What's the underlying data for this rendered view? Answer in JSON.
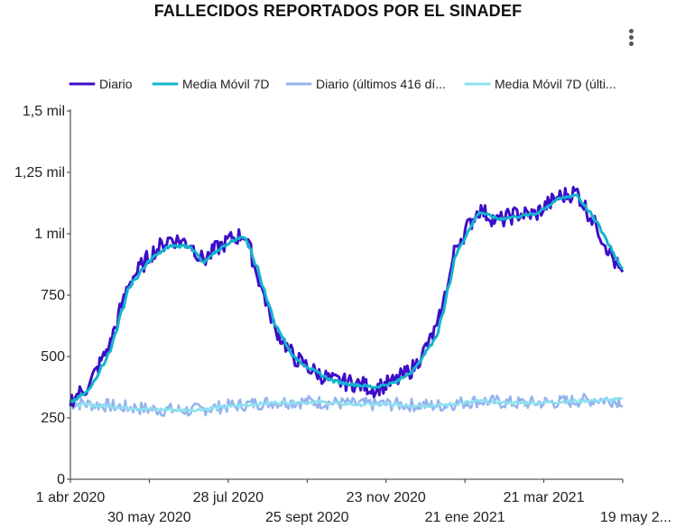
{
  "title": "FALLECIDOS REPORTADOS POR EL SINADEF",
  "chart_data": {
    "type": "line",
    "title": "FALLECIDOS REPORTADOS POR EL SINADEF",
    "xlabel": "",
    "ylabel": "",
    "ylim": [
      0,
      1500
    ],
    "y_ticks": [
      {
        "value": 0,
        "label": "0"
      },
      {
        "value": 250,
        "label": "250"
      },
      {
        "value": 500,
        "label": "500"
      },
      {
        "value": 750,
        "label": "750"
      },
      {
        "value": 1000,
        "label": "1 mil"
      },
      {
        "value": 1250,
        "label": "1,25 mil"
      },
      {
        "value": 1500,
        "label": "1,5 mil"
      }
    ],
    "x_range": [
      "2020-04-01",
      "2021-05-19"
    ],
    "x_ticks": [
      {
        "date": "2020-04-01",
        "label": "1 abr 2020",
        "row": 1
      },
      {
        "date": "2020-05-30",
        "label": "30 may 2020",
        "row": 2
      },
      {
        "date": "2020-07-28",
        "label": "28 jul 2020",
        "row": 1
      },
      {
        "date": "2020-09-25",
        "label": "25 sept 2020",
        "row": 2
      },
      {
        "date": "2020-11-23",
        "label": "23 nov 2020",
        "row": 1
      },
      {
        "date": "2021-01-21",
        "label": "21 ene 2021",
        "row": 2
      },
      {
        "date": "2021-03-21",
        "label": "21 mar 2021",
        "row": 1
      },
      {
        "date": "2021-05-19",
        "label": "19 may 2...",
        "row": 2
      }
    ],
    "grid": false,
    "legend_position": "top",
    "series": [
      {
        "name": "Diario",
        "color": "#3d0dc8",
        "x": [
          "2020-04-01",
          "2020-04-15",
          "2020-05-01",
          "2020-05-15",
          "2020-06-01",
          "2020-06-15",
          "2020-06-30",
          "2020-07-10",
          "2020-07-20",
          "2020-07-31",
          "2020-08-10",
          "2020-08-20",
          "2020-09-01",
          "2020-09-15",
          "2020-10-01",
          "2020-10-15",
          "2020-11-01",
          "2020-11-15",
          "2020-12-01",
          "2020-12-15",
          "2021-01-01",
          "2021-01-15",
          "2021-02-01",
          "2021-02-15",
          "2021-03-01",
          "2021-03-15",
          "2021-04-01",
          "2021-04-15",
          "2021-05-01",
          "2021-05-19"
        ],
        "values": [
          320,
          380,
          550,
          800,
          920,
          980,
          960,
          890,
          940,
          980,
          1000,
          820,
          620,
          500,
          440,
          400,
          390,
          370,
          400,
          460,
          620,
          950,
          1100,
          1050,
          1080,
          1080,
          1150,
          1170,
          1020,
          830
        ]
      },
      {
        "name": "Media Móvil 7D",
        "color": "#12b4cc",
        "x": [
          "2020-04-01",
          "2020-04-15",
          "2020-05-01",
          "2020-05-15",
          "2020-06-01",
          "2020-06-15",
          "2020-06-30",
          "2020-07-10",
          "2020-07-20",
          "2020-07-31",
          "2020-08-10",
          "2020-08-20",
          "2020-09-01",
          "2020-09-15",
          "2020-10-01",
          "2020-10-15",
          "2020-11-01",
          "2020-11-15",
          "2020-12-01",
          "2020-12-15",
          "2021-01-01",
          "2021-01-15",
          "2021-02-01",
          "2021-02-15",
          "2021-03-01",
          "2021-03-15",
          "2021-04-01",
          "2021-04-15",
          "2021-05-01",
          "2021-05-19"
        ],
        "values": [
          310,
          360,
          520,
          780,
          900,
          950,
          950,
          880,
          930,
          970,
          990,
          850,
          640,
          500,
          440,
          400,
          385,
          375,
          395,
          450,
          590,
          920,
          1090,
          1060,
          1070,
          1080,
          1140,
          1160,
          1040,
          860
        ]
      },
      {
        "name": "Diario (últimos 416 dí...",
        "color": "#93b4ec",
        "x": [
          "2020-04-01",
          "2020-05-01",
          "2020-06-01",
          "2020-07-01",
          "2020-08-01",
          "2020-09-01",
          "2020-10-01",
          "2020-11-01",
          "2020-12-01",
          "2021-01-01",
          "2021-02-01",
          "2021-03-01",
          "2021-04-01",
          "2021-05-01",
          "2021-05-19"
        ],
        "values": [
          310,
          300,
          285,
          280,
          300,
          315,
          315,
          305,
          305,
          300,
          320,
          310,
          315,
          325,
          320
        ]
      },
      {
        "name": "Media Móvil 7D (últi...",
        "color": "#8ee0f0",
        "x": [
          "2020-04-01",
          "2020-05-01",
          "2020-06-01",
          "2020-07-01",
          "2020-08-01",
          "2020-09-01",
          "2020-10-01",
          "2020-11-01",
          "2020-12-01",
          "2021-01-01",
          "2021-02-01",
          "2021-03-01",
          "2021-04-01",
          "2021-05-01",
          "2021-05-19"
        ],
        "values": [
          305,
          298,
          285,
          282,
          298,
          312,
          315,
          305,
          303,
          300,
          318,
          310,
          315,
          322,
          325
        ]
      }
    ]
  }
}
